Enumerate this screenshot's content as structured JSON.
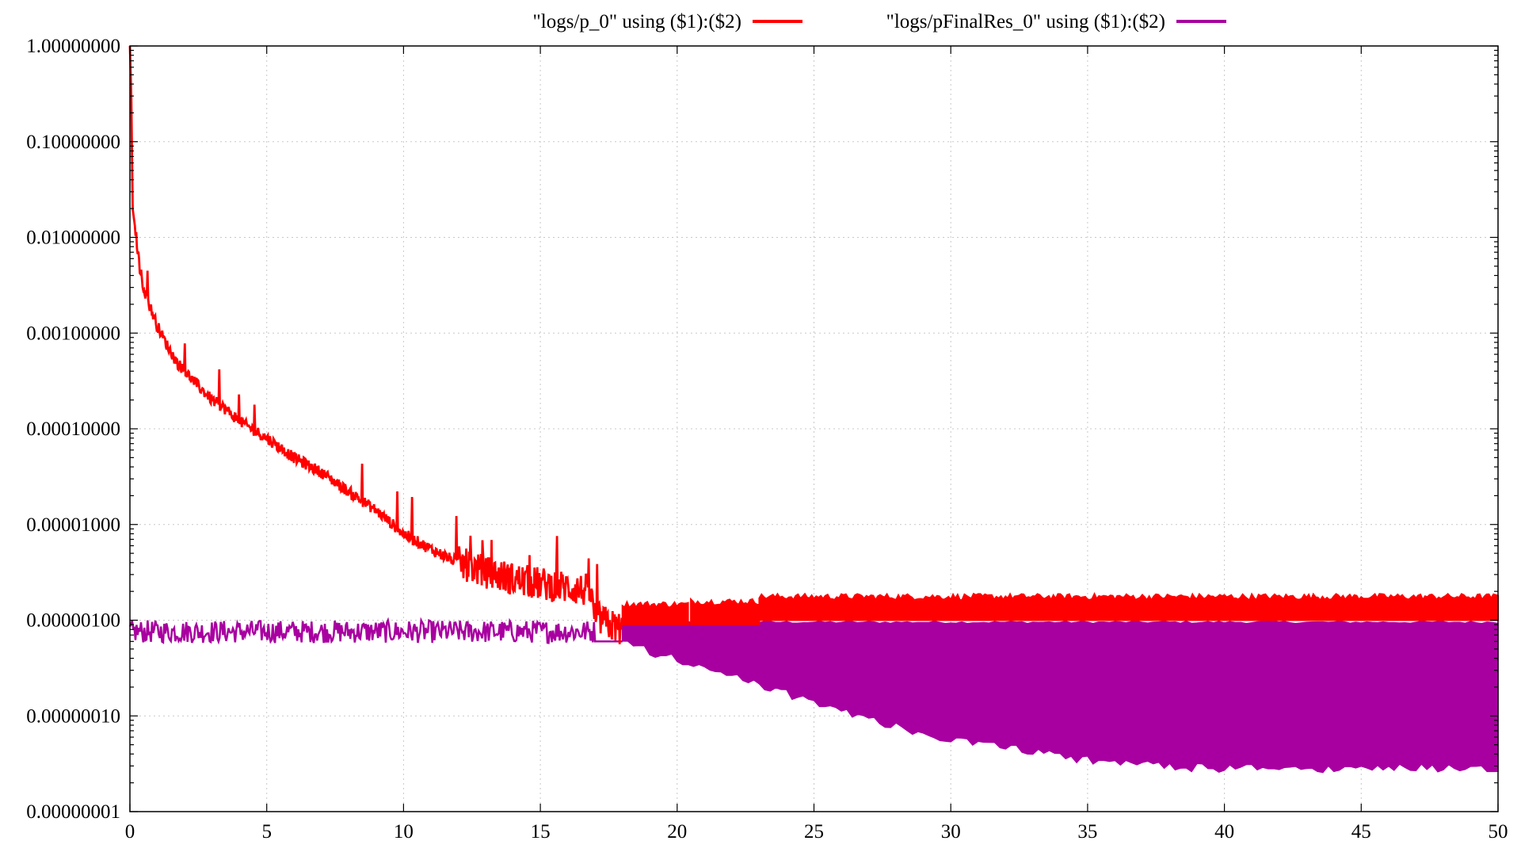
{
  "chart_data": {
    "type": "line",
    "title": "",
    "xlabel": "",
    "ylabel": "",
    "xlim": [
      0,
      50
    ],
    "ylim": [
      1e-08,
      1
    ],
    "yscale": "log",
    "grid": true,
    "legend_placement": "top-center",
    "x_ticks": [
      "0",
      "5",
      "10",
      "15",
      "20",
      "25",
      "30",
      "35",
      "40",
      "45",
      "50"
    ],
    "x_tick_values": [
      0,
      5,
      10,
      15,
      20,
      25,
      30,
      35,
      40,
      45,
      50
    ],
    "y_ticks": [
      "1.00000000",
      "0.10000000",
      "0.01000000",
      "0.00100000",
      "0.00010000",
      "0.00001000",
      "0.00000100",
      "0.00000010",
      "0.00000001"
    ],
    "y_tick_values": [
      1,
      0.1,
      0.01,
      0.001,
      0.0001,
      1e-05,
      1e-06,
      1e-07,
      1e-08
    ],
    "series": [
      {
        "name": "\"logs/p_0\" using ($1):($2)",
        "color": "#ff0000",
        "x": [
          0,
          0.05,
          0.1,
          0.2,
          0.35,
          0.5,
          0.7,
          1.0,
          1.3,
          1.7,
          2.0,
          2.5,
          3.0,
          3.5,
          4.0,
          5.0,
          6.0,
          7.0,
          8.0,
          9.0,
          10.0,
          11.0,
          12.0,
          13.0,
          14.0,
          15.0,
          16.0,
          16.8,
          17.0,
          17.5,
          18.0,
          18.1,
          19.0,
          20.0,
          20.4,
          20.5,
          22.0,
          23.0,
          25.0,
          30.0,
          35.0,
          40.0,
          45.0,
          50.0
        ],
        "y": [
          1.0,
          0.3,
          0.02,
          0.012,
          0.005,
          0.003,
          0.002,
          0.0012,
          0.0008,
          0.0005,
          0.0004,
          0.00028,
          0.0002,
          0.00016,
          0.00012,
          8e-05,
          5e-05,
          3.5e-05,
          2.2e-05,
          1.4e-05,
          8e-06,
          5.5e-06,
          4e-06,
          3.2e-06,
          2.7e-06,
          2.4e-06,
          2.2e-06,
          2e-06,
          1.1e-06,
          9e-07,
          8e-07,
          1.3e-06,
          1.2e-06,
          9e-07,
          8e-07,
          1.3e-06,
          1.2e-06,
          1.3e-06,
          1.4e-06,
          1.4e-06,
          1.4e-06,
          1.4e-06,
          1.4e-06,
          1.4e-06
        ],
        "band_low": [
          {
            "from": 18.0,
            "to": 20.4,
            "y": 9e-07
          },
          {
            "from": 20.5,
            "to": 23.0,
            "y": 9e-07
          },
          {
            "from": 23.0,
            "to": 50.0,
            "y": 1e-06
          }
        ],
        "band_high": [
          {
            "from": 18.0,
            "to": 20.4,
            "y": 1.5e-06
          },
          {
            "from": 20.5,
            "to": 23.0,
            "y": 1.6e-06
          },
          {
            "from": 23.0,
            "to": 50.0,
            "y": 1.8e-06
          }
        ]
      },
      {
        "name": "\"logs/pFinalRes_0\" using ($1):($2)",
        "color": "#a800a0",
        "x": [
          0,
          1,
          2,
          3,
          4,
          5,
          6,
          7,
          8,
          9,
          10,
          11,
          12,
          13,
          14,
          15,
          16,
          16.8,
          17.0,
          18.0,
          19.0,
          20.0,
          21.0,
          22.0,
          23.0,
          24.0,
          25.0,
          26.0,
          27.0,
          28.0,
          29.0,
          30.0,
          32.0,
          34.0,
          36.0,
          38.0,
          40.0,
          45.0,
          50.0
        ],
        "y": [
          7e-07,
          8e-07,
          7e-07,
          8e-07,
          7e-07,
          9e-07,
          8e-07,
          8e-07,
          8e-07,
          8e-07,
          8e-07,
          8.5e-07,
          8e-07,
          8e-07,
          8.5e-07,
          8e-07,
          8e-07,
          7e-07,
          6e-07,
          6e-07,
          5e-07,
          4.2e-07,
          3.3e-07,
          2.7e-07,
          2.2e-07,
          1.8e-07,
          1.5e-07,
          1.2e-07,
          1e-07,
          8.2e-08,
          7e-08,
          6e-08,
          5e-08,
          4e-08,
          3.4e-08,
          3.1e-08,
          3e-08,
          3e-08,
          3e-08
        ],
        "noise_band": {
          "from": 0,
          "to": 17.0,
          "low": 4e-07,
          "high": 1e-06
        },
        "fill_top": {
          "from": 18.0,
          "to": 50.0,
          "y": 9.5e-07
        }
      }
    ]
  }
}
